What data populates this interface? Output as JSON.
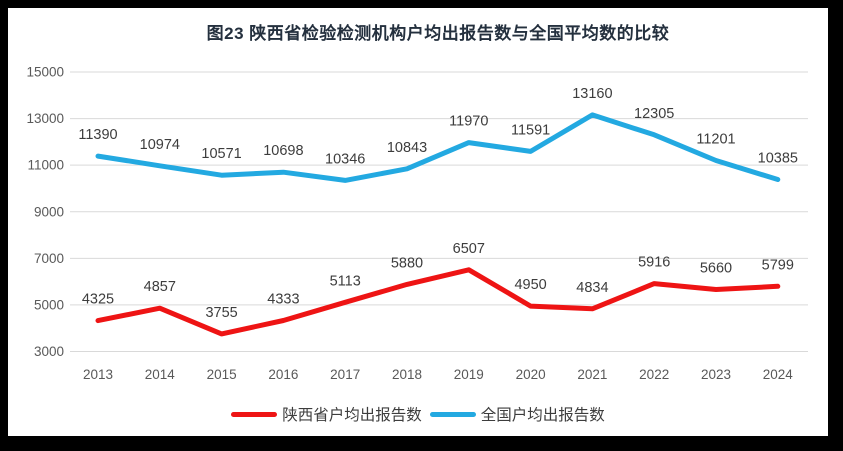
{
  "title": "图23 陕西省检验检测机构户均出报告数与全国平均数的比较",
  "chart_data": {
    "type": "line",
    "title": "图23 陕西省检验检测机构户均出报告数与全国平均数的比较",
    "categories": [
      "2013",
      "2014",
      "2015",
      "2016",
      "2017",
      "2018",
      "2019",
      "2020",
      "2021",
      "2022",
      "2023",
      "2024"
    ],
    "series": [
      {
        "name": "陕西省户均出报告数",
        "color": "#ee1414",
        "values": [
          4325,
          4857,
          3755,
          4333,
          5113,
          5880,
          6507,
          4950,
          4834,
          5916,
          5660,
          5799
        ]
      },
      {
        "name": "全国户均出报告数",
        "color": "#23a9e1",
        "values": [
          11390,
          10974,
          10571,
          10698,
          10346,
          10843,
          11970,
          11591,
          13160,
          12305,
          11201,
          10385
        ]
      }
    ],
    "y_axis": {
      "min": 3000,
      "max": 15000,
      "step": 2000,
      "ticks": [
        15000,
        13000,
        11000,
        9000,
        7000,
        5000,
        3000
      ]
    },
    "x_axis": {
      "label": ""
    },
    "grid": true,
    "data_labels": true,
    "legend_position": "bottom",
    "legend": [
      "陕西省户均出报告数",
      "全国户均出报告数"
    ],
    "colors": {
      "frame_border": "#000000",
      "panel_bg": "#ffffff",
      "title_color": "#24303e",
      "gridline_color": "#d9d9d9",
      "tick_color": "#595959",
      "datalabel_color": "#3d3d3d"
    }
  }
}
